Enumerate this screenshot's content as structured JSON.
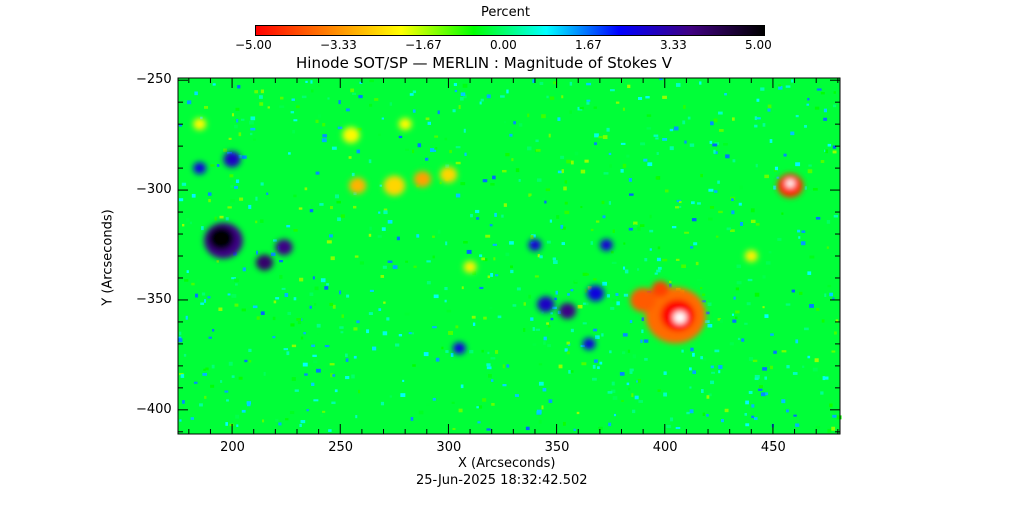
{
  "chart_data": {
    "type": "heatmap",
    "title": "Hinode SOT/SP — MERLIN : Magnitude of Stokes V",
    "xlabel": "X (Arcseconds)",
    "ylabel": "Y (Arcseconds)",
    "xlim": [
      175,
      481
    ],
    "ylim": [
      -411,
      -249
    ],
    "x_ticks": [
      200,
      250,
      300,
      350,
      400,
      450
    ],
    "y_ticks": [
      -250,
      -300,
      -350,
      -400
    ],
    "grid": false,
    "background_value": -0.4,
    "colorbar": {
      "label": "Percent",
      "range": [
        -5,
        5
      ],
      "tick_labels": [
        "-5.00",
        "-3.33",
        "-1.67",
        "0.00",
        "1.67",
        "3.33",
        "5.00"
      ],
      "colors": [
        "#ff0000",
        "#ff8000",
        "#ffff00",
        "#00ff00",
        "#00ffff",
        "#0000ff",
        "#400080",
        "#000000"
      ]
    },
    "features": [
      {
        "x": 458,
        "y": -298,
        "value": -4.5,
        "radius": 6
      },
      {
        "x": 458,
        "y": -297,
        "value": -6,
        "radius": 2
      },
      {
        "x": 405,
        "y": -357,
        "value": -3.8,
        "radius": 14
      },
      {
        "x": 406,
        "y": -357,
        "value": -5,
        "radius": 8
      },
      {
        "x": 407,
        "y": -358,
        "value": -6,
        "radius": 3
      },
      {
        "x": 390,
        "y": -350,
        "value": -4,
        "radius": 6
      },
      {
        "x": 398,
        "y": -345,
        "value": -4.3,
        "radius": 4
      },
      {
        "x": 195,
        "y": -322,
        "value": 5,
        "radius": 6
      },
      {
        "x": 196,
        "y": -323,
        "value": 3.5,
        "radius": 9
      },
      {
        "x": 215,
        "y": -333,
        "value": 3.8,
        "radius": 4
      },
      {
        "x": 224,
        "y": -326,
        "value": 3.5,
        "radius": 4
      },
      {
        "x": 200,
        "y": -286,
        "value": 2.8,
        "radius": 4
      },
      {
        "x": 185,
        "y": -290,
        "value": 2.5,
        "radius": 3
      },
      {
        "x": 355,
        "y": -355,
        "value": 3.5,
        "radius": 4
      },
      {
        "x": 345,
        "y": -352,
        "value": 2.8,
        "radius": 4
      },
      {
        "x": 368,
        "y": -347,
        "value": 2.5,
        "radius": 4
      },
      {
        "x": 340,
        "y": -325,
        "value": 2.6,
        "radius": 3
      },
      {
        "x": 373,
        "y": -325,
        "value": 2.6,
        "radius": 3
      },
      {
        "x": 305,
        "y": -372,
        "value": 2.5,
        "radius": 3
      },
      {
        "x": 365,
        "y": -370,
        "value": 2.5,
        "radius": 3
      },
      {
        "x": 258,
        "y": -298,
        "value": -3,
        "radius": 4
      },
      {
        "x": 275,
        "y": -298,
        "value": -2.6,
        "radius": 5
      },
      {
        "x": 288,
        "y": -295,
        "value": -3.2,
        "radius": 4
      },
      {
        "x": 300,
        "y": -293,
        "value": -2.6,
        "radius": 4
      },
      {
        "x": 255,
        "y": -275,
        "value": -2.2,
        "radius": 4
      },
      {
        "x": 280,
        "y": -270,
        "value": -2.2,
        "radius": 3
      },
      {
        "x": 310,
        "y": -335,
        "value": -2.3,
        "radius": 3
      },
      {
        "x": 440,
        "y": -330,
        "value": -2.3,
        "radius": 3
      },
      {
        "x": 185,
        "y": -270,
        "value": -2.2,
        "radius": 3
      }
    ],
    "timestamp": "25-Jun-2025 18:32:42.502"
  }
}
